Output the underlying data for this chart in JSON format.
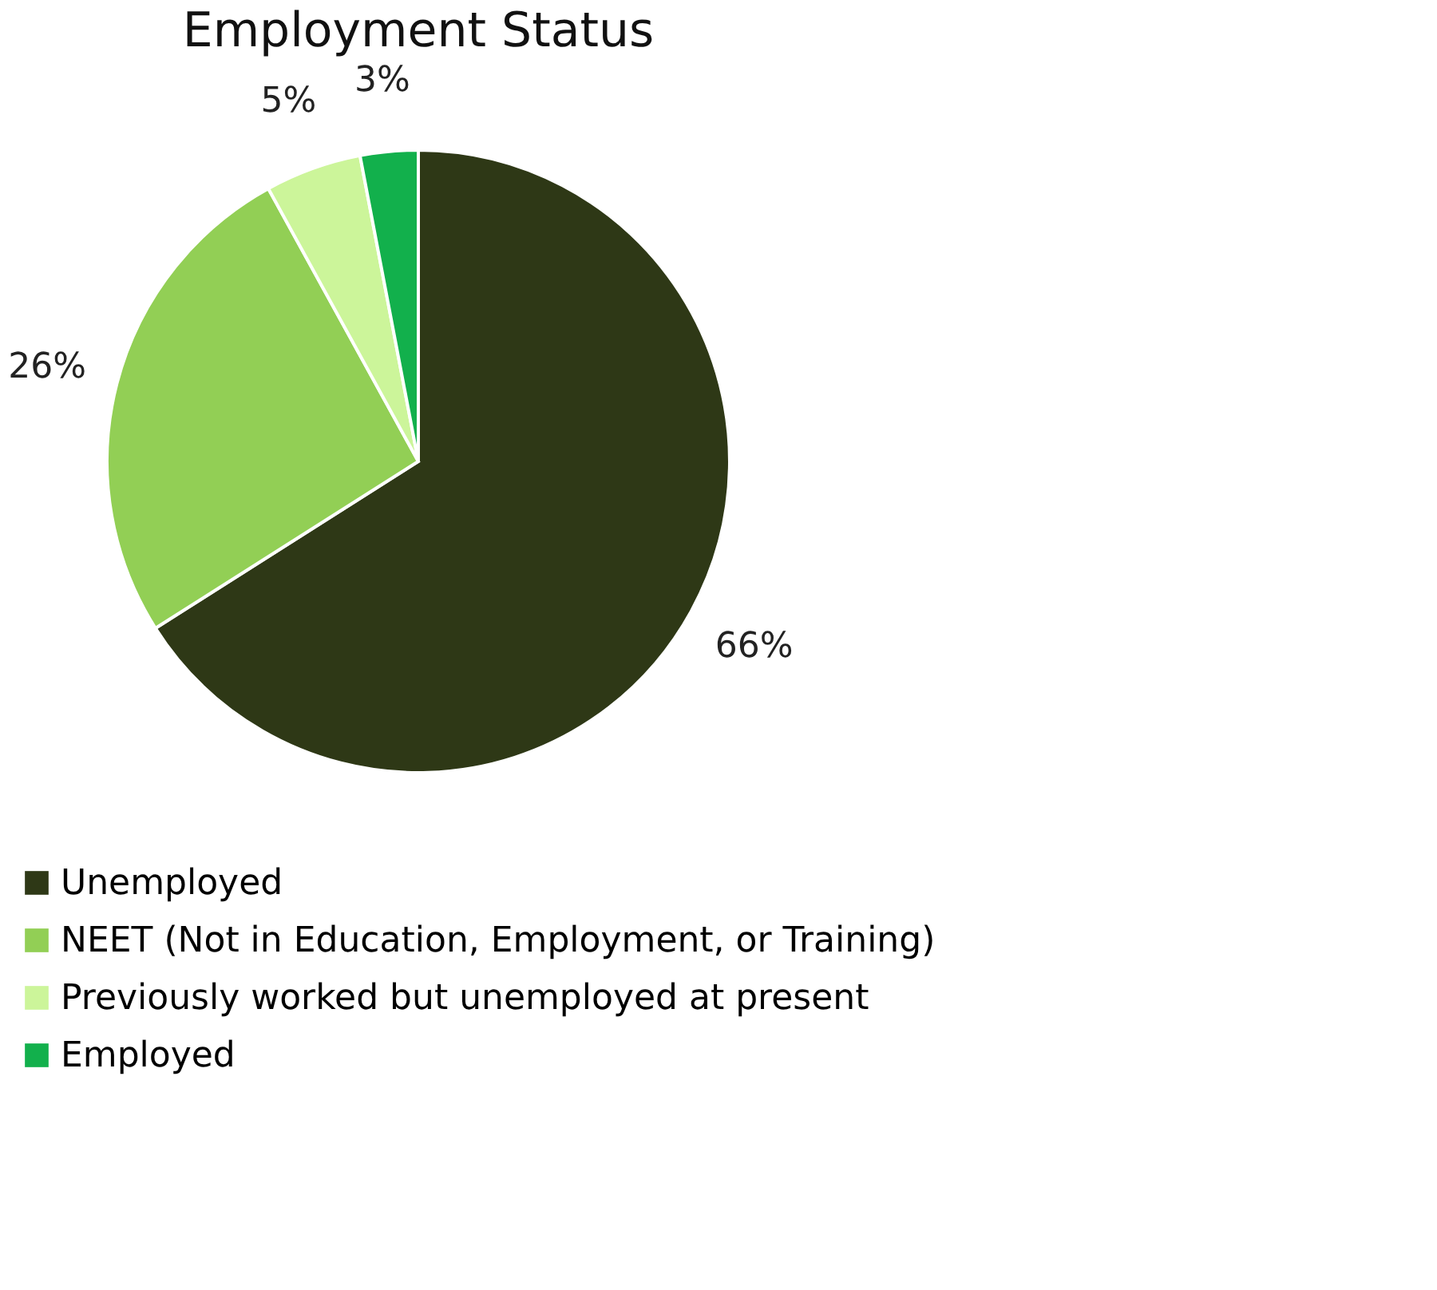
{
  "chart_data": {
    "type": "pie",
    "title": "Employment Status",
    "categories": [
      "Unemployed",
      "NEET (Not in Education, Employment, or Training)",
      "Previously worked but unemployed at present",
      "Employed"
    ],
    "values": [
      66,
      26,
      5,
      3
    ],
    "colors": [
      "#2e3816",
      "#92cf55",
      "#ccf59a",
      "#12b04c"
    ],
    "value_labels": [
      "66%",
      "26%",
      "5%",
      "3%"
    ],
    "legend": "bottom"
  }
}
